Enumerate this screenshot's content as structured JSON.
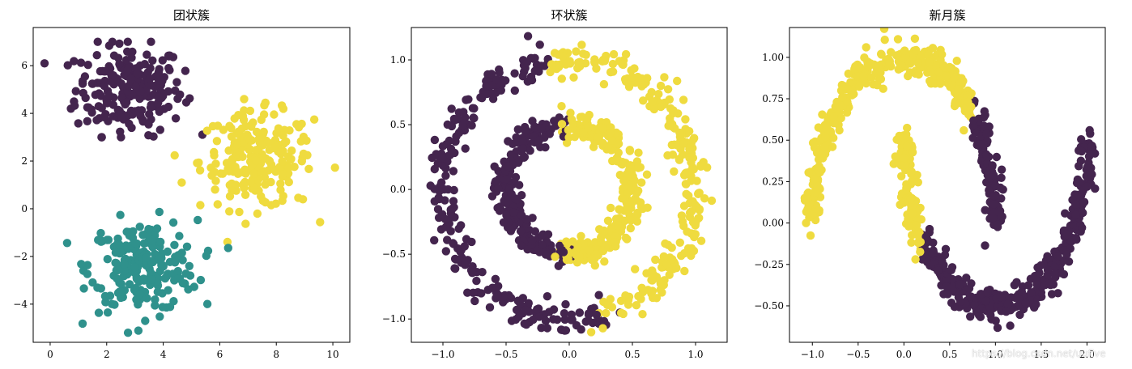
{
  "watermark": "https://blog.csdn.net/uufive",
  "colors": {
    "purple": "#44254e",
    "teal": "#2f918c",
    "yellow": "#efdb3f"
  },
  "chart_data": [
    {
      "type": "scatter",
      "title": "团状簇",
      "xlabel": "",
      "ylabel": "",
      "xlim": [
        -0.6,
        10.6
      ],
      "ylim": [
        -5.6,
        7.6
      ],
      "xticks": [
        0,
        2,
        4,
        6,
        8,
        10
      ],
      "yticks": [
        -4,
        -2,
        0,
        2,
        4,
        6
      ],
      "grid": false,
      "clusters": [
        {
          "color": "#44254e",
          "center": [
            2.8,
            5.0
          ],
          "spread": [
            0.95,
            0.95
          ],
          "count": 220,
          "extent": {
            "x": [
              -0.2,
              5.5
            ],
            "y": [
              3.0,
              7.0
            ]
          }
        },
        {
          "color": "#efdb3f",
          "center": [
            7.3,
            2.0
          ],
          "spread": [
            1.0,
            1.0
          ],
          "count": 220,
          "extent": {
            "x": [
              4.2,
              10.3
            ],
            "y": [
              -1.8,
              4.6
            ]
          }
        },
        {
          "color": "#2f918c",
          "center": [
            3.3,
            -2.4
          ],
          "spread": [
            0.95,
            0.95
          ],
          "count": 220,
          "extent": {
            "x": [
              0.6,
              7.8
            ],
            "y": [
              -5.2,
              0.3
            ]
          }
        }
      ]
    },
    {
      "type": "scatter",
      "title": "环状簇",
      "xlabel": "",
      "ylabel": "",
      "xlim": [
        -1.25,
        1.25
      ],
      "ylim": [
        -1.18,
        1.25
      ],
      "xticks": [
        -1.0,
        -0.5,
        0.0,
        0.5,
        1.0
      ],
      "yticks": [
        -1.0,
        -0.5,
        0.0,
        0.5,
        1.0
      ],
      "grid": false,
      "rings": [
        {
          "radius": 1.0,
          "noise": 0.06,
          "count": 500,
          "purple_arc_deg": [
            100,
            285
          ],
          "other_color": "#efdb3f",
          "arc_color": "#44254e"
        },
        {
          "radius": 0.5,
          "noise": 0.05,
          "count": 500,
          "purple_arc_deg": [
            95,
            265
          ],
          "other_color": "#efdb3f",
          "arc_color": "#44254e"
        }
      ]
    },
    {
      "type": "scatter",
      "title": "新月簇",
      "xlabel": "",
      "ylabel": "",
      "xlim": [
        -1.25,
        2.2
      ],
      "ylim": [
        -0.72,
        1.18
      ],
      "xticks": [
        -1.0,
        -0.5,
        0.0,
        0.5,
        1.0,
        1.5,
        2.0
      ],
      "yticks": [
        -0.5,
        -0.25,
        0.0,
        0.25,
        0.5,
        0.75,
        1.0
      ],
      "grid": false,
      "moons": [
        {
          "shape": "upper",
          "center": [
            0.0,
            0.0
          ],
          "radius": 1.0,
          "noise": 0.05,
          "count": 500,
          "color_split_x": 0.75,
          "left_color": "#efdb3f",
          "right_color": "#44254e"
        },
        {
          "shape": "lower",
          "center": [
            1.0,
            0.5
          ],
          "radius": 1.0,
          "noise": 0.05,
          "count": 500,
          "color_split_x": 0.2,
          "left_color": "#efdb3f",
          "right_color": "#44254e"
        }
      ]
    }
  ]
}
